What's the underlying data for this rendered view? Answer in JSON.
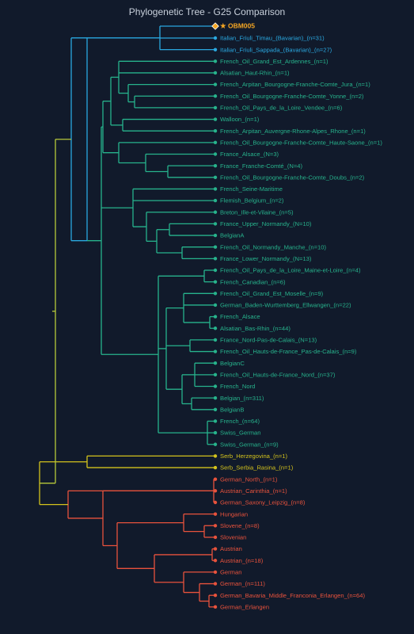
{
  "title": "Phylogenetic Tree - G25 Comparison",
  "colors": {
    "background": "#111a2b",
    "target": "#f5a623",
    "italian": "#2aa8e0",
    "french": "#27b38c",
    "serb": "#d4c31c",
    "german": "#e8523c",
    "root": "#b7c93a"
  },
  "target": {
    "label": "OBM005",
    "marker": "★"
  },
  "leaves": [
    {
      "label": "Italian_Friuli_Timau_(Bavarian)_(n=31)",
      "group": "italian"
    },
    {
      "label": "Italian_Friuli_Sappada_(Bavarian)_(n=27)",
      "group": "italian"
    },
    {
      "label": "French_Oil_Grand_Est_Ardennes_(n=1)",
      "group": "french"
    },
    {
      "label": "Alsatian_Haut-Rhin_(n=1)",
      "group": "french"
    },
    {
      "label": "French_Arpitan_Bourgogne-Franche-Comte_Jura_(n=1)",
      "group": "french"
    },
    {
      "label": "French_Oil_Bourgogne-Franche-Comte_Yonne_(n=2)",
      "group": "french"
    },
    {
      "label": "French_Oil_Pays_de_la_Loire_Vendee_(n=6)",
      "group": "french"
    },
    {
      "label": "Walloon_(n=1)",
      "group": "french"
    },
    {
      "label": "French_Arpitan_Auvergne-Rhone-Alpes_Rhone_(n=1)",
      "group": "french"
    },
    {
      "label": "French_Oil_Bourgogne-Franche-Comte_Haute-Saone_(n=1)",
      "group": "french"
    },
    {
      "label": "France_Alsace_(N=3)",
      "group": "french"
    },
    {
      "label": "France_Franche-Comté_(N=4)",
      "group": "french"
    },
    {
      "label": "French_Oil_Bourgogne-Franche-Comte_Doubs_(n=2)",
      "group": "french"
    },
    {
      "label": "French_Seine-Maritime",
      "group": "french"
    },
    {
      "label": "Flemish_Belgium_(n=2)",
      "group": "french"
    },
    {
      "label": "Breton_Ille-et-Vilaine_(n=5)",
      "group": "french"
    },
    {
      "label": "France_Upper_Normandy_(N=10)",
      "group": "french"
    },
    {
      "label": "BelgianA",
      "group": "french"
    },
    {
      "label": "French_Oil_Normandy_Manche_(n=10)",
      "group": "french"
    },
    {
      "label": "France_Lower_Normandy_(N=13)",
      "group": "french"
    },
    {
      "label": "French_Oil_Pays_de_la_Loire_Maine-et-Loire_(n=4)",
      "group": "french"
    },
    {
      "label": "French_Canadian_(n=6)",
      "group": "french"
    },
    {
      "label": "French_Oil_Grand_Est_Moselle_(n=9)",
      "group": "french"
    },
    {
      "label": "German_Baden-Wurttemberg_Ellwangen_(n=22)",
      "group": "french"
    },
    {
      "label": "French_Alsace",
      "group": "french"
    },
    {
      "label": "Alsatian_Bas-Rhin_(n=44)",
      "group": "french"
    },
    {
      "label": "France_Nord-Pas-de-Calais_(N=13)",
      "group": "french"
    },
    {
      "label": "French_Oil_Hauts-de-France_Pas-de-Calais_(n=9)",
      "group": "french"
    },
    {
      "label": "BelgianC",
      "group": "french"
    },
    {
      "label": "French_Oil_Hauts-de-France_Nord_(n=37)",
      "group": "french"
    },
    {
      "label": "French_Nord",
      "group": "french"
    },
    {
      "label": "Belgian_(n=311)",
      "group": "french"
    },
    {
      "label": "BelgianB",
      "group": "french"
    },
    {
      "label": "French_(n=64)",
      "group": "french"
    },
    {
      "label": "Swiss_German",
      "group": "french"
    },
    {
      "label": "Swiss_German_(n=9)",
      "group": "french"
    },
    {
      "label": "Serb_Herzegovina_(n=1)",
      "group": "serb"
    },
    {
      "label": "Serb_Serbia_Rasina_(n=1)",
      "group": "serb"
    },
    {
      "label": "German_North_(n=1)",
      "group": "german"
    },
    {
      "label": "Austrian_Carinthia_(n=1)",
      "group": "german"
    },
    {
      "label": "German_Saxony_Leipzig_(n=8)",
      "group": "german"
    },
    {
      "label": "Hungarian",
      "group": "german"
    },
    {
      "label": "Slovene_(n=8)",
      "group": "german"
    },
    {
      "label": "Slovenian",
      "group": "german"
    },
    {
      "label": "Austrian",
      "group": "german"
    },
    {
      "label": "Austrian_(n=18)",
      "group": "german"
    },
    {
      "label": "German",
      "group": "german"
    },
    {
      "label": "German_(n=111)",
      "group": "german"
    },
    {
      "label": "German_Bavaria_Middle_Franconia_Erlangen_(n=64)",
      "group": "german"
    },
    {
      "label": "German_Erlangen",
      "group": "german"
    }
  ]
}
